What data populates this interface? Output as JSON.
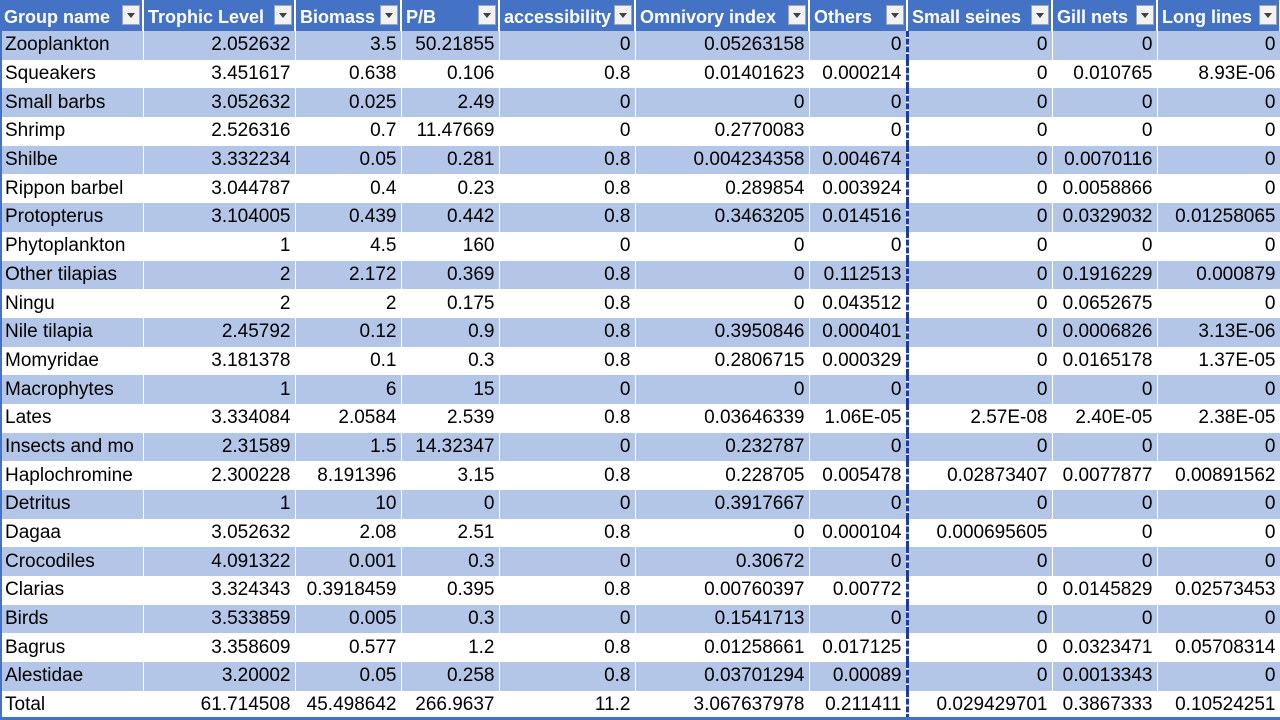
{
  "headers": [
    "Group name",
    "Trophic Level",
    "Biomass",
    "P/B",
    "accessibility",
    "Omnivory index",
    "Others",
    "Small seines",
    "Gill nets",
    "Long lines"
  ],
  "rows": [
    [
      "Zooplankton",
      "2.052632",
      "3.5",
      "50.21855",
      "0",
      "0.05263158",
      "0",
      "0",
      "0",
      "0"
    ],
    [
      "Squeakers",
      "3.451617",
      "0.638",
      "0.106",
      "0.8",
      "0.01401623",
      "0.000214",
      "0",
      "0.010765",
      "8.93E-06"
    ],
    [
      "Small barbs",
      "3.052632",
      "0.025",
      "2.49",
      "0",
      "0",
      "0",
      "0",
      "0",
      "0"
    ],
    [
      "Shrimp",
      "2.526316",
      "0.7",
      "11.47669",
      "0",
      "0.2770083",
      "0",
      "0",
      "0",
      "0"
    ],
    [
      "Shilbe",
      "3.332234",
      "0.05",
      "0.281",
      "0.8",
      "0.004234358",
      "0.004674",
      "0",
      "0.0070116",
      "0"
    ],
    [
      "Rippon barbel",
      "3.044787",
      "0.4",
      "0.23",
      "0.8",
      "0.289854",
      "0.003924",
      "0",
      "0.0058866",
      "0"
    ],
    [
      "Protopterus",
      "3.104005",
      "0.439",
      "0.442",
      "0.8",
      "0.3463205",
      "0.014516",
      "0",
      "0.0329032",
      "0.01258065"
    ],
    [
      "Phytoplankton",
      "1",
      "4.5",
      "160",
      "0",
      "0",
      "0",
      "0",
      "0",
      "0"
    ],
    [
      "Other tilapias",
      "2",
      "2.172",
      "0.369",
      "0.8",
      "0",
      "0.112513",
      "0",
      "0.1916229",
      "0.000879"
    ],
    [
      "Ningu",
      "2",
      "2",
      "0.175",
      "0.8",
      "0",
      "0.043512",
      "0",
      "0.0652675",
      "0"
    ],
    [
      "Nile tilapia",
      "2.45792",
      "0.12",
      "0.9",
      "0.8",
      "0.3950846",
      "0.000401",
      "0",
      "0.0006826",
      "3.13E-06"
    ],
    [
      "Momyridae",
      "3.181378",
      "0.1",
      "0.3",
      "0.8",
      "0.2806715",
      "0.000329",
      "0",
      "0.0165178",
      "1.37E-05"
    ],
    [
      "Macrophytes",
      "1",
      "6",
      "15",
      "0",
      "0",
      "0",
      "0",
      "0",
      "0"
    ],
    [
      "Lates",
      "3.334084",
      "2.0584",
      "2.539",
      "0.8",
      "0.03646339",
      "1.06E-05",
      "2.57E-08",
      "2.40E-05",
      "2.38E-05"
    ],
    [
      "Insects and mo",
      "2.31589",
      "1.5",
      "14.32347",
      "0",
      "0.232787",
      "0",
      "0",
      "0",
      "0"
    ],
    [
      "Haplochromine",
      "2.300228",
      "8.191396",
      "3.15",
      "0.8",
      "0.228705",
      "0.005478",
      "0.02873407",
      "0.0077877",
      "0.00891562"
    ],
    [
      "Detritus",
      "1",
      "10",
      "0",
      "0",
      "0.3917667",
      "0",
      "0",
      "0",
      "0"
    ],
    [
      "Dagaa",
      "3.052632",
      "2.08",
      "2.51",
      "0.8",
      "0",
      "0.000104",
      "0.000695605",
      "0",
      "0"
    ],
    [
      "Crocodiles",
      "4.091322",
      "0.001",
      "0.3",
      "0",
      "0.30672",
      "0",
      "0",
      "0",
      "0"
    ],
    [
      "Clarias",
      "3.324343",
      "0.3918459",
      "0.395",
      "0.8",
      "0.00760397",
      "0.00772",
      "0",
      "0.0145829",
      "0.02573453"
    ],
    [
      "Birds",
      "3.533859",
      "0.005",
      "0.3",
      "0",
      "0.1541713",
      "0",
      "0",
      "0",
      "0"
    ],
    [
      "Bagrus",
      "3.358609",
      "0.577",
      "1.2",
      "0.8",
      "0.01258661",
      "0.017125",
      "0",
      "0.0323471",
      "0.05708314"
    ],
    [
      "Alestidae",
      "3.20002",
      "0.05",
      "0.258",
      "0.8",
      "0.03701294",
      "0.00089",
      "0",
      "0.0013343",
      "0"
    ],
    [
      "Total",
      "61.714508",
      "45.498642",
      "266.9637",
      "11.2",
      "3.067637978",
      "0.211411",
      "0.029429701",
      "0.3867333",
      "0.10524251"
    ]
  ],
  "colors": {
    "header_bg": "#4472c4",
    "band_bg": "#b4c6e7",
    "page_break": "#1f3c9c"
  },
  "icons": {
    "filter": "filter-dropdown-icon"
  }
}
